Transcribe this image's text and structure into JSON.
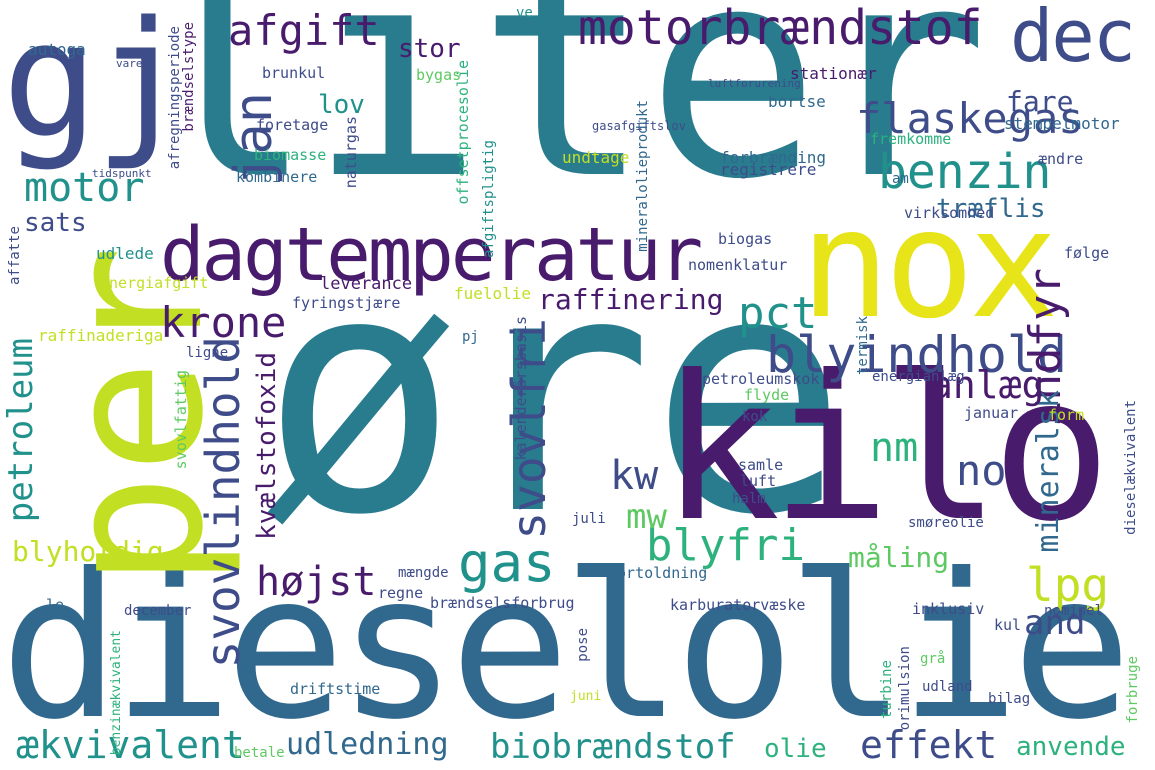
{
  "palette": {
    "dark_purple": "#481b6d",
    "indigo": "#3e4c8a",
    "blue": "#31688e",
    "teal": "#287c8e",
    "teal_green": "#21918c",
    "green": "#2db27d",
    "light_green": "#5ec962",
    "lime": "#addc30",
    "yellow": "#e7e419",
    "background": "#ffffff"
  },
  "words": [
    "liter",
    "øre",
    "dieselolie",
    "gj",
    "per",
    "kilo",
    "nox",
    "dagtemperatur",
    "dec",
    "motorbrændstof",
    "afgift",
    "jan",
    "flaskegas",
    "benzin",
    "motor",
    "sats",
    "blyindhold",
    "krone",
    "pct",
    "svovlindhold",
    "svovlfri",
    "indfyr",
    "mineralsk",
    "anlæg",
    "raffinering",
    "kvælstofoxid",
    "petroleum",
    "gas",
    "blyfri",
    "højst",
    "lpg",
    "and",
    "nm",
    "no",
    "kw",
    "mw",
    "træflis",
    "fare",
    "stor",
    "lov",
    "biobrændstof",
    "effekt",
    "ækvivalent",
    "udledning",
    "anvende",
    "olie",
    "blyholdig",
    "måling",
    "stempelmotor",
    "stationær",
    "bortse",
    "forbrænding",
    "registrere",
    "fremkomme",
    "kombinere",
    "biomasse",
    "naturgas",
    "foretage",
    "brunkul",
    "bygas",
    "autoga",
    "offsetprocesolie",
    "afgiftspligtig",
    "gasafgiftslov",
    "undtage",
    "mineralolieprodukt",
    "virksomhed",
    "biogas",
    "nomenklatur",
    "udlede",
    "energiafgift",
    "fuelolie",
    "leverance",
    "fyringstjære",
    "raffinaderiga",
    "ligne",
    "petroleumskok",
    "energianlæg",
    "januar",
    "form",
    "flyde",
    "kok",
    "samle",
    "luft",
    "halm",
    "juli",
    "smøreolie",
    "fortoldning",
    "mængde",
    "regne",
    "december",
    "le",
    "brændselsforbrug",
    "karburatorvæske",
    "inklusiv",
    "nominel",
    "kul",
    "svovlfattig",
    "dieselækvivalent",
    "kalenderårsbasis",
    "pj",
    "termisk",
    "ændre",
    "følge",
    "am",
    "ve",
    "vare",
    "luftforurening",
    "afregningsperiode",
    "brændselstype",
    "driftstime",
    "pose",
    "turbine",
    "orimulsion",
    "grå",
    "udland",
    "bilag",
    "forbruge",
    "benzinækvivalent",
    "juni",
    "betale",
    "affatte",
    "tidspunkt"
  ]
}
